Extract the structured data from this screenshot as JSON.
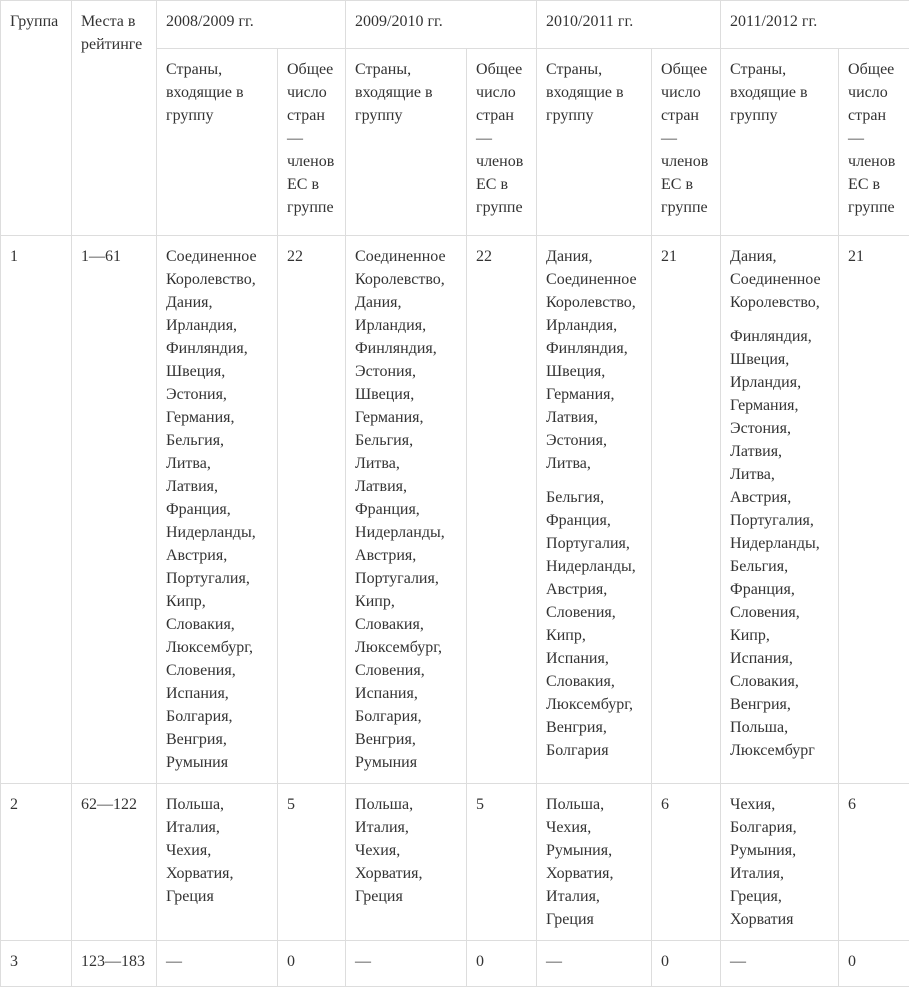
{
  "header": {
    "group": "Группа",
    "places": "Места в рейтинге",
    "sub_countries": "Страны, входящие в группу",
    "sub_total": "Общее число стран — членов ЕС в группе",
    "years": [
      "2008/2009 гг.",
      "2009/2010 гг.",
      "2010/2011 гг.",
      "2011/2012 гг."
    ]
  },
  "chart_data": {
    "type": "table",
    "title": "",
    "columns": [
      "Группа",
      "Места в рейтинге",
      "2008/2009 гг.",
      "2009/2010 гг.",
      "2010/2011 гг.",
      "2011/2012 гг."
    ],
    "eu_member_counts": {
      "group1": [
        22,
        22,
        21,
        21
      ],
      "group2": [
        5,
        5,
        6,
        6
      ],
      "group3": [
        0,
        0,
        0,
        0
      ]
    }
  },
  "rows": [
    {
      "group": "1",
      "places": "1—61",
      "year_cells": [
        {
          "countries": [
            [
              "Соединенное Королевство,",
              "Дания,",
              "Ирландия,",
              "Финляндия,",
              "Швеция,",
              "Эстония,",
              "Германия,",
              "Бельгия,",
              "Литва,",
              "Латвия,",
              "Франция,",
              "Нидерланды,",
              "Австрия,",
              "Португалия,",
              "Кипр,",
              "Словакия,",
              "Люксембург,",
              "Словения,",
              "Испания,",
              "Болгария,",
              "Венгрия,",
              "Румыния"
            ]
          ],
          "total": "22"
        },
        {
          "countries": [
            [
              "Соединенное Королевство,",
              "Дания,",
              "Ирландия,",
              "Финляндия,",
              "Эстония,",
              "Швеция,",
              "Германия,",
              "Бельгия,",
              "Литва,",
              "Латвия,",
              "Франция,",
              "Нидерланды,",
              "Австрия,",
              "Португалия,",
              "Кипр,",
              "Словакия,",
              "Люксембург,",
              "Словения,",
              "Испания,",
              "Болгария,",
              "Венгрия,",
              "Румыния"
            ]
          ],
          "total": "22"
        },
        {
          "countries": [
            [
              "Дания,",
              "Соединенное Королевство,",
              "Ирландия,",
              "Финляндия,",
              "Швеция,",
              "Германия,",
              "Латвия,",
              "Эстония,",
              "Литва,"
            ],
            [
              "Бельгия,",
              "Франция,",
              "Португалия,",
              "Нидерланды,",
              "Австрия,",
              "Словения,",
              "Кипр,",
              "Испания,",
              "Словакия,",
              "Люксембург,",
              "Венгрия,",
              "Болгария"
            ]
          ],
          "total": "21"
        },
        {
          "countries": [
            [
              "Дания,",
              "Соединенное Королевство,"
            ],
            [
              "Финляндия,",
              "Швеция,",
              "Ирландия,",
              "Германия,",
              "Эстония,",
              "Латвия,",
              "Литва,",
              "Австрия,",
              "Португалия,",
              "Нидерланды,",
              "Бельгия,",
              "Франция,",
              "Словения,",
              "Кипр,",
              "Испания,",
              "Словакия,",
              "Венгрия,",
              "Польша,",
              "Люксембург"
            ]
          ],
          "total": "21"
        }
      ]
    },
    {
      "group": "2",
      "places": "62—122",
      "year_cells": [
        {
          "countries": [
            [
              "Польша,",
              "Италия,",
              "Чехия,",
              "Хорватия,",
              "Греция"
            ]
          ],
          "total": "5"
        },
        {
          "countries": [
            [
              "Польша,",
              "Италия,",
              "Чехия,",
              "Хорватия,",
              "Греция"
            ]
          ],
          "total": "5"
        },
        {
          "countries": [
            [
              "Польша,",
              "Чехия,",
              "Румыния,",
              "Хорватия,",
              "Италия,",
              "Греция"
            ]
          ],
          "total": "6"
        },
        {
          "countries": [
            [
              "Чехия,",
              "Болгария,",
              "Румыния,",
              "Италия,",
              "Греция,",
              "Хорватия"
            ]
          ],
          "total": "6"
        }
      ]
    },
    {
      "group": "3",
      "places": "123—183",
      "year_cells": [
        {
          "countries": [
            [
              "—"
            ]
          ],
          "total": "0"
        },
        {
          "countries": [
            [
              "—"
            ]
          ],
          "total": "0"
        },
        {
          "countries": [
            [
              "—"
            ]
          ],
          "total": "0"
        },
        {
          "countries": [
            [
              "—"
            ]
          ],
          "total": "0"
        }
      ]
    }
  ]
}
